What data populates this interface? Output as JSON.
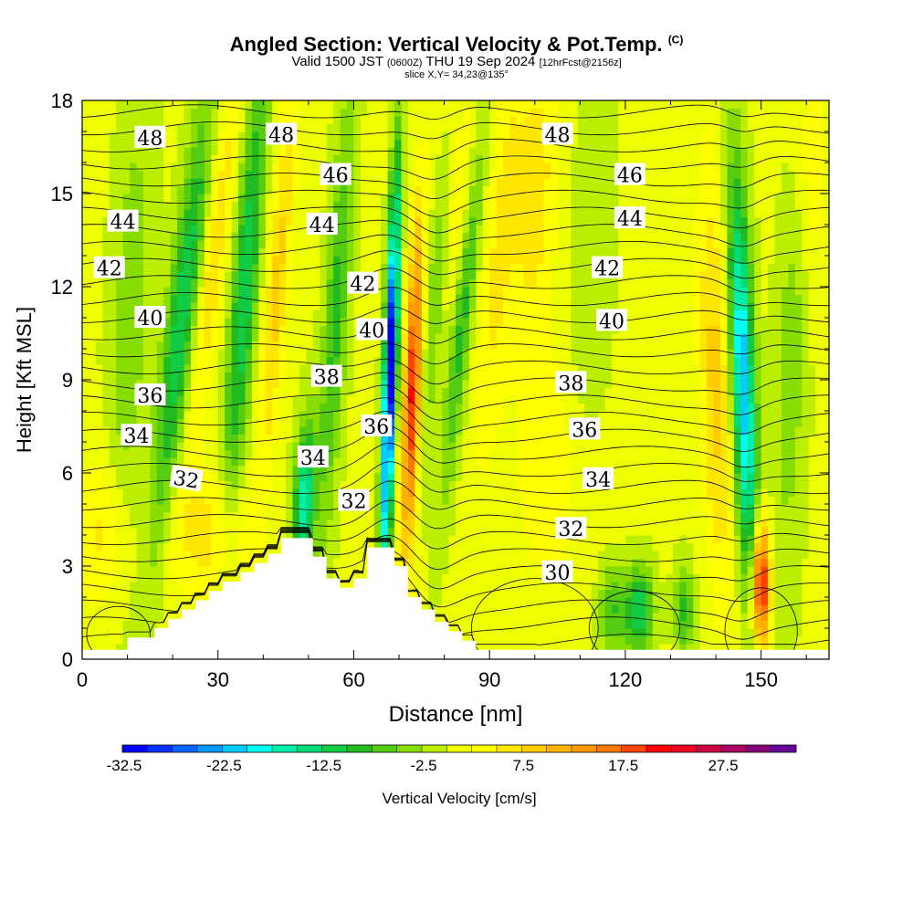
{
  "title": {
    "main": "Angled Section: Vertical Velocity & Pot.Temp.",
    "unit_tag": "(C)",
    "valid_prefix": "Valid 1500 JST",
    "valid_utc": "(0600Z)",
    "valid_date": "THU 19 Sep 2024",
    "forecast": "[12hrFcst@2156z]",
    "slice": "slice X,Y= 34,23@135°"
  },
  "chart_data": {
    "type": "heatmap",
    "xlabel": "Distance [nm]",
    "ylabel": "Height [Kft MSL]",
    "xlim": [
      0,
      165
    ],
    "ylim": [
      0,
      18
    ],
    "x_ticks": [
      0,
      30,
      60,
      90,
      120,
      150
    ],
    "y_ticks": [
      0,
      3,
      6,
      9,
      12,
      15,
      18
    ],
    "colorbar": {
      "label": "Vertical Velocity [cm/s]",
      "tick_values": [
        -32.5,
        -22.5,
        -12.5,
        -2.5,
        7.5,
        17.5,
        27.5
      ],
      "tick_labels": [
        "-32.5",
        "-22.5",
        "-12.5",
        "-2.5",
        "7.5",
        "17.5",
        "27.5"
      ],
      "min": -32.5,
      "step": 2.5,
      "colors": [
        "#0000ff",
        "#0033ff",
        "#0066ff",
        "#0099ff",
        "#00ccff",
        "#00ffee",
        "#00eeaa",
        "#00dd77",
        "#11cc44",
        "#22bb22",
        "#55cc11",
        "#88dd00",
        "#bbee00",
        "#eeff00",
        "#ffff00",
        "#ffe600",
        "#ffcc00",
        "#ffb300",
        "#ff9900",
        "#ff7700",
        "#ff4400",
        "#ff0000",
        "#ee0022",
        "#cc0044",
        "#aa0066",
        "#880077",
        "#660099"
      ]
    },
    "terrain_profile_kft": [
      [
        0,
        0.3
      ],
      [
        10,
        0.3
      ],
      [
        10,
        0.7
      ],
      [
        16,
        0.7
      ],
      [
        16,
        1.0
      ],
      [
        19,
        1.0
      ],
      [
        19,
        1.3
      ],
      [
        22,
        1.3
      ],
      [
        22,
        1.6
      ],
      [
        25,
        1.6
      ],
      [
        25,
        1.9
      ],
      [
        28,
        1.9
      ],
      [
        28,
        2.2
      ],
      [
        31,
        2.2
      ],
      [
        31,
        2.5
      ],
      [
        35,
        2.5
      ],
      [
        35,
        2.8
      ],
      [
        38,
        2.8
      ],
      [
        38,
        3.1
      ],
      [
        41,
        3.1
      ],
      [
        41,
        3.4
      ],
      [
        44,
        3.4
      ],
      [
        44,
        3.9
      ],
      [
        51,
        3.9
      ],
      [
        51,
        3.3
      ],
      [
        54,
        3.3
      ],
      [
        54,
        2.6
      ],
      [
        57,
        2.6
      ],
      [
        57,
        2.3
      ],
      [
        60,
        2.3
      ],
      [
        60,
        2.6
      ],
      [
        63,
        2.6
      ],
      [
        63,
        3.6
      ],
      [
        69,
        3.6
      ],
      [
        69,
        3.0
      ],
      [
        72,
        3.0
      ],
      [
        72,
        2.0
      ],
      [
        75,
        2.0
      ],
      [
        75,
        1.6
      ],
      [
        78,
        1.6
      ],
      [
        78,
        1.2
      ],
      [
        81,
        1.2
      ],
      [
        81,
        0.9
      ],
      [
        84,
        0.9
      ],
      [
        84,
        0.6
      ],
      [
        87,
        0.6
      ],
      [
        87,
        0.3
      ],
      [
        165,
        0.3
      ]
    ],
    "vertical_velocity_features": [
      {
        "x_center": 22,
        "y_range": [
          4,
          18
        ],
        "value": -12,
        "kind": "downdraft band"
      },
      {
        "x_center": 36,
        "y_range": [
          6,
          18
        ],
        "value": -12,
        "kind": "downdraft band"
      },
      {
        "x_center": 68,
        "y_range": [
          3.6,
          14
        ],
        "value": -32,
        "kind": "downdraft core"
      },
      {
        "x_center": 73,
        "y_range": [
          4,
          12
        ],
        "value": 20,
        "kind": "updraft core"
      },
      {
        "x_center": 150,
        "y_range": [
          0.5,
          4
        ],
        "value": 22,
        "kind": "updraft core"
      },
      {
        "x_center": 146,
        "y_range": [
          5,
          13
        ],
        "value": -22,
        "kind": "downdraft band"
      },
      {
        "x_center": 122,
        "y_range": [
          0.5,
          2.5
        ],
        "value": -12,
        "kind": "downdraft cell"
      }
    ],
    "potential_temperature_contours": [
      {
        "label": "30",
        "base_kft": 2.6,
        "label_x": 105
      },
      {
        "label": "32",
        "base_kft": 4.1,
        "label_x": 108
      },
      {
        "label": "34",
        "base_kft": 5.6,
        "label_x": 114
      },
      {
        "label": "36",
        "base_kft": 7.2,
        "label_x": 111
      },
      {
        "label": "38",
        "base_kft": 8.9,
        "label_x": 108
      },
      {
        "label": "40",
        "base_kft": 10.8,
        "label_x": 117
      },
      {
        "label": "42",
        "base_kft": 12.5,
        "label_x": 116
      },
      {
        "label": "44",
        "base_kft": 14.0,
        "label_x": 121
      },
      {
        "label": "46",
        "base_kft": 15.5,
        "label_x": 121
      },
      {
        "label": "48",
        "base_kft": 16.9,
        "label_x": 105
      }
    ],
    "contour_label_positions": [
      {
        "label": "48",
        "x": 15,
        "y": 16.8
      },
      {
        "label": "48",
        "x": 44,
        "y": 16.9
      },
      {
        "label": "48",
        "x": 105,
        "y": 16.9
      },
      {
        "label": "46",
        "x": 56,
        "y": 15.6
      },
      {
        "label": "46",
        "x": 121,
        "y": 15.6
      },
      {
        "label": "44",
        "x": 9,
        "y": 14.1
      },
      {
        "label": "44",
        "x": 53,
        "y": 14.0
      },
      {
        "label": "44",
        "x": 121,
        "y": 14.2
      },
      {
        "label": "42",
        "x": 6,
        "y": 12.6
      },
      {
        "label": "42",
        "x": 62,
        "y": 12.1
      },
      {
        "label": "42",
        "x": 116,
        "y": 12.6
      },
      {
        "label": "40",
        "x": 15,
        "y": 11.0
      },
      {
        "label": "40",
        "x": 64,
        "y": 10.6
      },
      {
        "label": "40",
        "x": 117,
        "y": 10.9
      },
      {
        "label": "38",
        "x": 54,
        "y": 9.1
      },
      {
        "label": "38",
        "x": 108,
        "y": 8.9
      },
      {
        "label": "36",
        "x": 15,
        "y": 8.5
      },
      {
        "label": "36",
        "x": 65,
        "y": 7.5
      },
      {
        "label": "36",
        "x": 111,
        "y": 7.4
      },
      {
        "label": "34",
        "x": 12,
        "y": 7.2
      },
      {
        "label": "34",
        "x": 51,
        "y": 6.5
      },
      {
        "label": "34",
        "x": 114,
        "y": 5.8
      },
      {
        "label": "32",
        "x": 23,
        "y": 5.8
      },
      {
        "label": "32",
        "x": 60,
        "y": 5.1
      },
      {
        "label": "32",
        "x": 108,
        "y": 4.2
      },
      {
        "label": "30",
        "x": 105,
        "y": 2.8
      }
    ]
  }
}
